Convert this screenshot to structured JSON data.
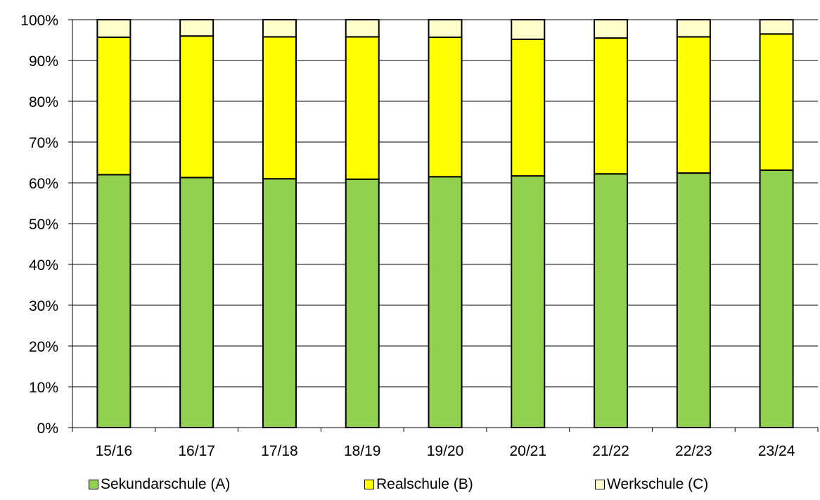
{
  "chart_data": {
    "type": "bar",
    "stacked": true,
    "percent": true,
    "categories": [
      "15/16",
      "16/17",
      "17/18",
      "18/19",
      "19/20",
      "20/21",
      "21/22",
      "22/23",
      "23/24"
    ],
    "series": [
      {
        "name": "Sekundarschule (A)",
        "color": "#92D050",
        "values": [
          62.0,
          61.3,
          61.0,
          60.9,
          61.5,
          61.7,
          62.2,
          62.4,
          63.1
        ]
      },
      {
        "name": "Realschule (B)",
        "color": "#FFFF00",
        "values": [
          33.7,
          34.7,
          34.8,
          34.9,
          34.2,
          33.5,
          33.3,
          33.4,
          33.4
        ]
      },
      {
        "name": "Werkschule (C)",
        "color": "#FFFFCC",
        "values": [
          4.3,
          4.0,
          4.2,
          4.2,
          4.3,
          4.8,
          4.5,
          4.2,
          3.5
        ]
      }
    ],
    "yticks": [
      "0%",
      "10%",
      "20%",
      "30%",
      "40%",
      "50%",
      "60%",
      "70%",
      "80%",
      "90%",
      "100%"
    ],
    "ylim": [
      0,
      100
    ],
    "grid": true,
    "legend_position": "bottom"
  }
}
